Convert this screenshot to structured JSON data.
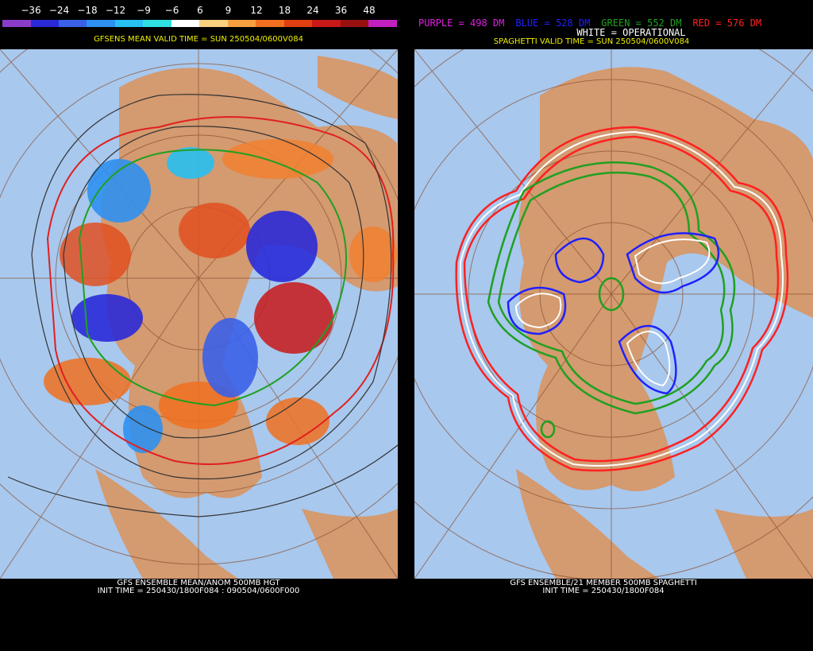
{
  "left_panel": {
    "colorbar_labels": [
      "−36",
      "−24",
      "−18",
      "−12",
      "−9",
      "−6",
      "6",
      "9",
      "12",
      "18",
      "24",
      "36",
      "48"
    ],
    "title": "GFSENS MEAN VALID TIME = SUN 250504/0600V084",
    "footer": [
      "GFS ENSEMBLE MEAN/ANOM 500MB HGT",
      "INIT TIME = 250430/1800F084 : 090504/0600F000"
    ]
  },
  "right_panel": {
    "legend": [
      {
        "text": "PURPLE = 498 DM",
        "color": "#e020e0"
      },
      {
        "text": "BLUE = 528 DM",
        "color": "#2020ff"
      },
      {
        "text": "GREEN = 552 DM",
        "color": "#20a020"
      },
      {
        "text": "RED = 576 DM",
        "color": "#ff2020"
      }
    ],
    "operational": "WHITE = OPERATIONAL",
    "title": "SPAGHETTI VALID TIME = SUN 250504/0600V084",
    "footer": [
      "GFS ENSEMBLE/21 MEMBER 500MB SPAGHETTI",
      "INIT TIME = 250430/1800F084"
    ]
  }
}
